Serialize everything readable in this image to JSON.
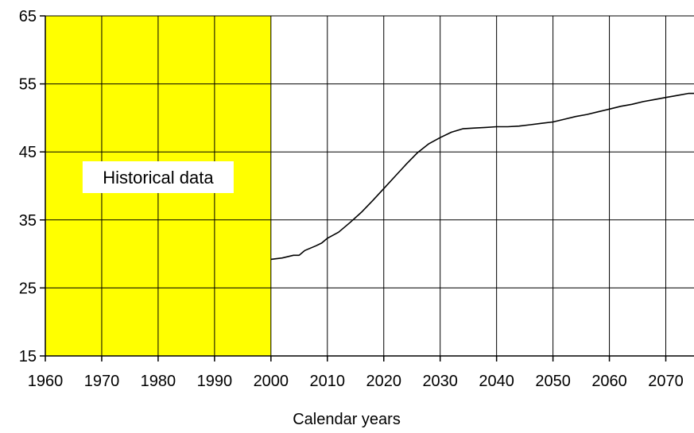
{
  "chart_data": {
    "type": "line",
    "title": "",
    "xlabel": "Calendar years",
    "ylabel": "",
    "xlim": [
      1960,
      2075
    ],
    "ylim": [
      15,
      65
    ],
    "xticks": [
      1960,
      1970,
      1980,
      1990,
      2000,
      2010,
      2020,
      2030,
      2040,
      2050,
      2060,
      2070
    ],
    "yticks": [
      15,
      25,
      35,
      45,
      55,
      65
    ],
    "grid": true,
    "legend": "none",
    "highlight_region": {
      "x_start": 1960,
      "x_end": 2000,
      "label": "Historical data",
      "color": "#ffff00"
    },
    "series": [
      {
        "color": "#000000",
        "x": [
          2000,
          2002,
          2004,
          2005,
          2006,
          2008,
          2009,
          2010,
          2012,
          2014,
          2016,
          2018,
          2020,
          2022,
          2024,
          2026,
          2028,
          2030,
          2032,
          2034,
          2036,
          2038,
          2040,
          2042,
          2044,
          2046,
          2048,
          2050,
          2052,
          2054,
          2056,
          2058,
          2060,
          2062,
          2064,
          2066,
          2068,
          2070,
          2072,
          2074,
          2075
        ],
        "y": [
          29.2,
          29.4,
          29.8,
          29.8,
          30.5,
          31.2,
          31.6,
          32.3,
          33.2,
          34.6,
          36.1,
          37.8,
          39.6,
          41.4,
          43.2,
          44.9,
          46.2,
          47.1,
          47.9,
          48.4,
          48.5,
          48.6,
          48.7,
          48.7,
          48.8,
          49.0,
          49.2,
          49.4,
          49.8,
          50.2,
          50.5,
          50.9,
          51.3,
          51.7,
          52.0,
          52.4,
          52.7,
          53.0,
          53.3,
          53.6,
          53.6
        ]
      }
    ]
  }
}
